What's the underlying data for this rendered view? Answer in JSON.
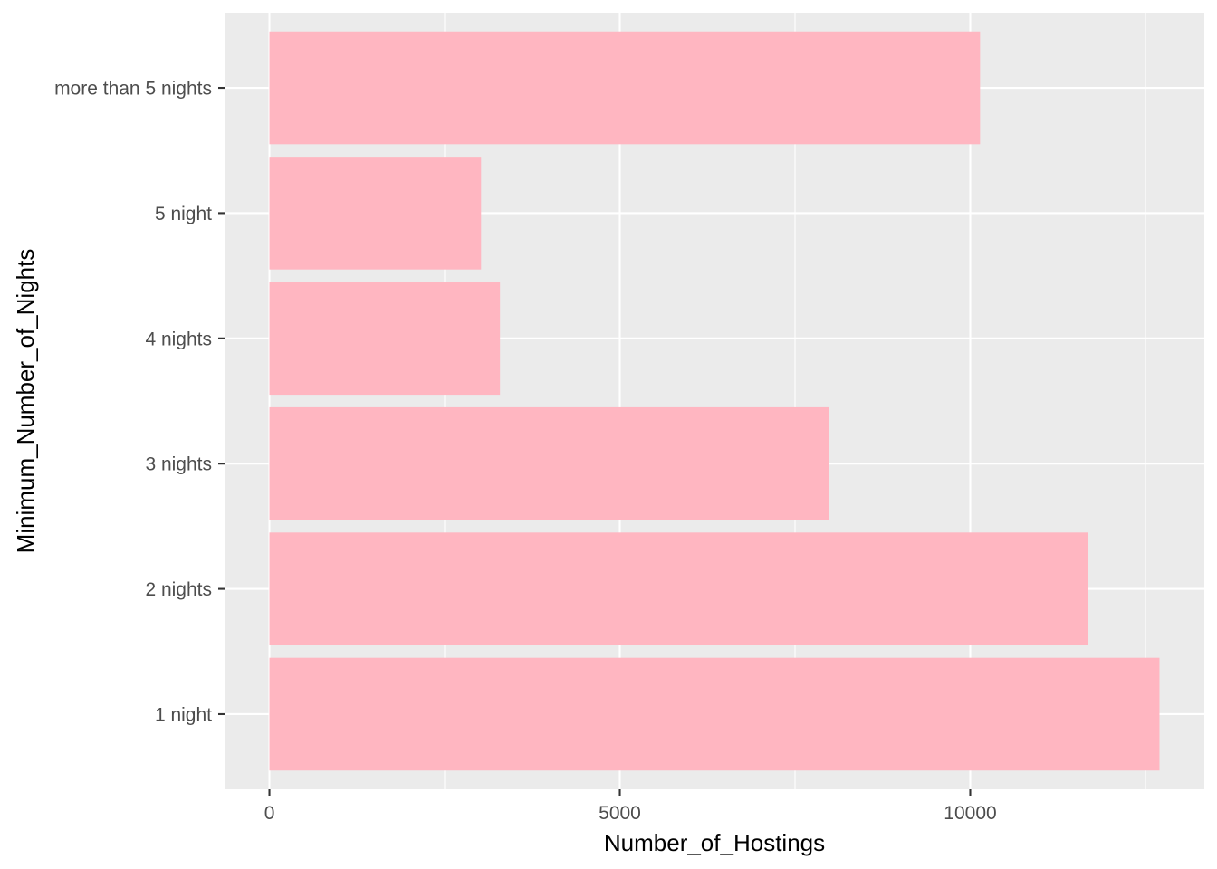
{
  "chart_data": {
    "type": "bar",
    "orientation": "horizontal",
    "categories": [
      "1 night",
      "2 nights",
      "3 nights",
      "4 nights",
      "5 night",
      "more than 5 nights"
    ],
    "values": [
      12700,
      11680,
      7980,
      3290,
      3020,
      10140
    ],
    "xlabel": "Number_of_Hostings",
    "ylabel": "Minimum_Number_of_Nights",
    "xlim": [
      -640,
      13340
    ],
    "xticks": [
      0,
      5000,
      10000
    ],
    "x_tick_labels": [
      "0",
      "5000",
      "10000"
    ],
    "x_minor_ticks": [
      2500,
      7500,
      12500
    ],
    "bar_color": "#FFB6C1",
    "panel_background": "#EBEBEB",
    "grid": true,
    "grid_color": "#FFFFFF",
    "legend": "none"
  }
}
